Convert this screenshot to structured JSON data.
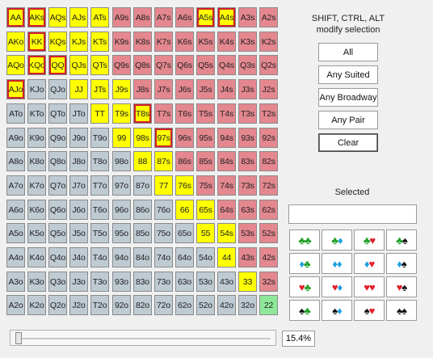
{
  "colors": {
    "pair": "#ffff00",
    "in_range": "#ffff00",
    "suited": "#e4878f",
    "offsuit": "#bfcbd3",
    "highlight": "#8fe89a",
    "selected_outline": "#d0202a"
  },
  "grid": {
    "rows": [
      [
        "AA",
        "AKs",
        "AQs",
        "AJs",
        "ATs",
        "A9s",
        "A8s",
        "A7s",
        "A6s",
        "A5s",
        "A4s",
        "A3s",
        "A2s"
      ],
      [
        "AKo",
        "KK",
        "KQs",
        "KJs",
        "KTs",
        "K9s",
        "K8s",
        "K7s",
        "K6s",
        "K5s",
        "K4s",
        "K3s",
        "K2s"
      ],
      [
        "AQo",
        "KQo",
        "QQ",
        "QJs",
        "QTs",
        "Q9s",
        "Q8s",
        "Q7s",
        "Q6s",
        "Q5s",
        "Q4s",
        "Q3s",
        "Q2s"
      ],
      [
        "AJo",
        "KJo",
        "QJo",
        "JJ",
        "JTs",
        "J9s",
        "J8s",
        "J7s",
        "J6s",
        "J5s",
        "J4s",
        "J3s",
        "J2s"
      ],
      [
        "ATo",
        "KTo",
        "QTo",
        "JTo",
        "TT",
        "T9s",
        "T8s",
        "T7s",
        "T6s",
        "T5s",
        "T4s",
        "T3s",
        "T2s"
      ],
      [
        "A9o",
        "K9o",
        "Q9o",
        "J9o",
        "T9o",
        "99",
        "98s",
        "97s",
        "96s",
        "95s",
        "94s",
        "93s",
        "92s"
      ],
      [
        "A8o",
        "K8o",
        "Q8o",
        "J8o",
        "T8o",
        "98o",
        "88",
        "87s",
        "86s",
        "85s",
        "84s",
        "83s",
        "82s"
      ],
      [
        "A7o",
        "K7o",
        "Q7o",
        "J7o",
        "T7o",
        "97o",
        "87o",
        "77",
        "76s",
        "75s",
        "74s",
        "73s",
        "72s"
      ],
      [
        "A6o",
        "K6o",
        "Q6o",
        "J6o",
        "T6o",
        "96o",
        "86o",
        "76o",
        "66",
        "65s",
        "64s",
        "63s",
        "62s"
      ],
      [
        "A5o",
        "K5o",
        "Q5o",
        "J5o",
        "T5o",
        "95o",
        "85o",
        "75o",
        "65o",
        "55",
        "54s",
        "53s",
        "52s"
      ],
      [
        "A4o",
        "K4o",
        "Q4o",
        "J4o",
        "T4o",
        "94o",
        "84o",
        "74o",
        "64o",
        "54o",
        "44",
        "43s",
        "42s"
      ],
      [
        "A3o",
        "K3o",
        "Q3o",
        "J3o",
        "T3o",
        "93o",
        "83o",
        "73o",
        "63o",
        "53o",
        "43o",
        "33",
        "32s"
      ],
      [
        "A2o",
        "K2o",
        "Q2o",
        "J2o",
        "T2o",
        "92o",
        "82o",
        "72o",
        "62o",
        "52o",
        "42o",
        "32o",
        "22"
      ]
    ],
    "in_range": [
      "AA",
      "AKs",
      "AQs",
      "AJs",
      "ATs",
      "A5s",
      "A4s",
      "AKo",
      "KK",
      "KQs",
      "KJs",
      "KTs",
      "AQo",
      "KQo",
      "QQ",
      "QJs",
      "QTs",
      "AJo",
      "JJ",
      "JTs",
      "J9s",
      "TT",
      "T9s",
      "T8s",
      "99",
      "98s",
      "97s",
      "88",
      "87s",
      "77",
      "76s",
      "66",
      "65s",
      "55",
      "54s",
      "44",
      "33"
    ],
    "outlined": [
      "AA",
      "AKs",
      "A5s",
      "A4s",
      "KK",
      "KQo",
      "QQ",
      "AJo",
      "T8s",
      "97s"
    ],
    "highlighted": [
      "22"
    ]
  },
  "panel": {
    "hint_line1": "SHIFT, CTRL, ALT",
    "hint_line2": "modify selection",
    "btn_all": "All",
    "btn_any_suited": "Any Suited",
    "btn_any_broadway": "Any Broadway",
    "btn_any_pair": "Any Pair",
    "btn_clear": "Clear",
    "selected_label": "Selected",
    "selected_value": ""
  },
  "suit_combos": [
    [
      {
        "a": "♣",
        "ac": "#22a02a",
        "b": "♣",
        "bc": "#22a02a"
      },
      {
        "a": "♣",
        "ac": "#22a02a",
        "b": "♦",
        "bc": "#1e9fe0"
      },
      {
        "a": "♣",
        "ac": "#22a02a",
        "b": "♥",
        "bc": "#e0202a"
      },
      {
        "a": "♣",
        "ac": "#22a02a",
        "b": "♠",
        "bc": "#111111"
      }
    ],
    [
      {
        "a": "♦",
        "ac": "#1e9fe0",
        "b": "♣",
        "bc": "#22a02a"
      },
      {
        "a": "♦",
        "ac": "#1e9fe0",
        "b": "♦",
        "bc": "#1e9fe0"
      },
      {
        "a": "♦",
        "ac": "#1e9fe0",
        "b": "♥",
        "bc": "#e0202a"
      },
      {
        "a": "♦",
        "ac": "#1e9fe0",
        "b": "♠",
        "bc": "#111111"
      }
    ],
    [
      {
        "a": "♥",
        "ac": "#e0202a",
        "b": "♣",
        "bc": "#22a02a"
      },
      {
        "a": "♥",
        "ac": "#e0202a",
        "b": "♦",
        "bc": "#1e9fe0"
      },
      {
        "a": "♥",
        "ac": "#e0202a",
        "b": "♥",
        "bc": "#e0202a"
      },
      {
        "a": "♥",
        "ac": "#e0202a",
        "b": "♠",
        "bc": "#111111"
      }
    ],
    [
      {
        "a": "♠",
        "ac": "#111111",
        "b": "♣",
        "bc": "#22a02a"
      },
      {
        "a": "♠",
        "ac": "#111111",
        "b": "♦",
        "bc": "#1e9fe0"
      },
      {
        "a": "♠",
        "ac": "#111111",
        "b": "♥",
        "bc": "#e0202a"
      },
      {
        "a": "♠",
        "ac": "#111111",
        "b": "♠",
        "bc": "#111111"
      }
    ]
  ],
  "slider": {
    "fraction": 0.0,
    "percent_label": "15.4%"
  }
}
